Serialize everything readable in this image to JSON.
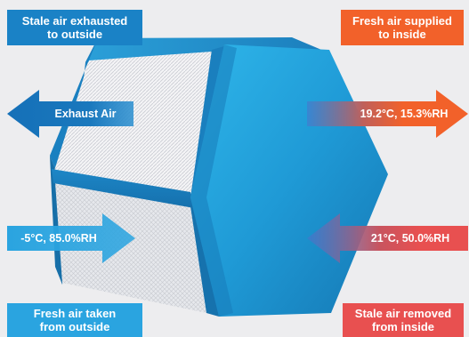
{
  "labels": {
    "stale_exhausted": "Stale air exhausted\nto outside",
    "fresh_supplied": "Fresh air supplied\nto inside",
    "fresh_taken": "Fresh air taken\nfrom outside",
    "stale_removed": "Stale air removed\nfrom inside"
  },
  "arrows": {
    "exhaust": "Exhaust Air",
    "supply": "19.2°C, 15.3%RH",
    "outdoor": "-5°C, 85.0%RH",
    "indoor": "21°C, 50.0%RH"
  },
  "colors": {
    "blue": "#1a82c6",
    "orange": "#f2612a",
    "red": "#e85050",
    "core": "#1f9ad6"
  }
}
